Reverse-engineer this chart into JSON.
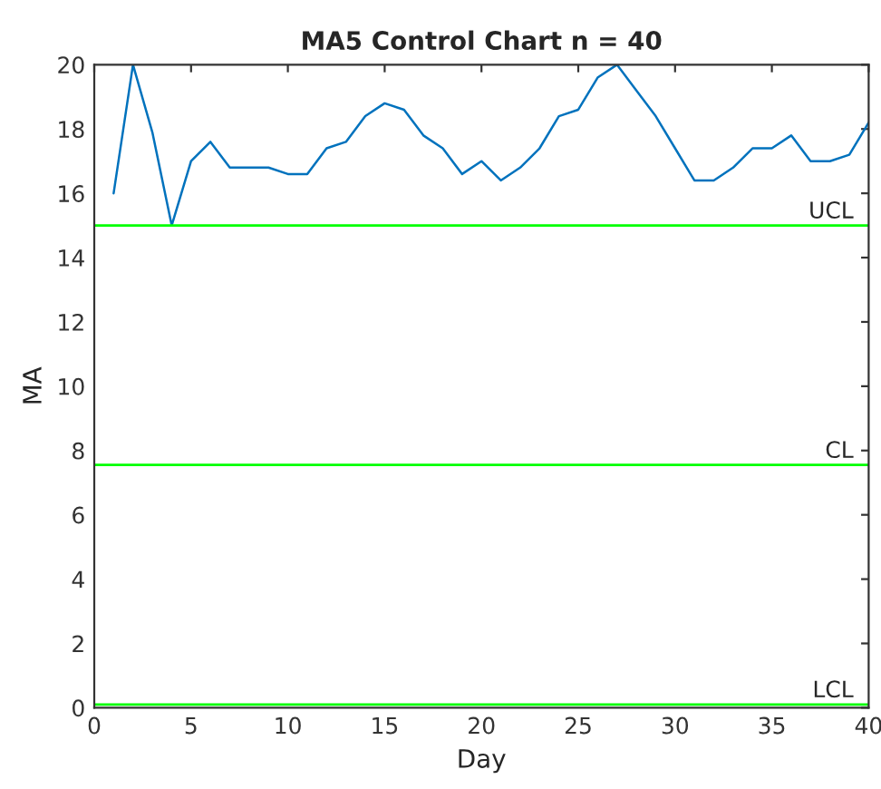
{
  "chart_data": {
    "type": "line",
    "title": "MA5 Control Chart n = 40",
    "xlabel": "Day",
    "ylabel": "MA",
    "x": [
      1,
      2,
      3,
      4,
      5,
      6,
      7,
      8,
      9,
      10,
      11,
      12,
      13,
      14,
      15,
      16,
      17,
      18,
      19,
      20,
      21,
      22,
      23,
      24,
      25,
      26,
      27,
      28,
      29,
      30,
      31,
      32,
      33,
      34,
      35,
      36,
      37,
      38,
      39,
      40
    ],
    "series": [
      {
        "color": "#0072bd",
        "values": [
          16.0,
          20.0,
          17.9,
          15.0,
          17.0,
          17.6,
          16.8,
          16.8,
          16.8,
          16.6,
          16.6,
          17.4,
          17.6,
          18.4,
          18.8,
          18.6,
          17.8,
          17.4,
          16.6,
          17.0,
          16.4,
          16.8,
          17.4,
          18.4,
          18.6,
          19.6,
          20.0,
          19.2,
          18.4,
          17.4,
          16.4,
          16.4,
          16.8,
          17.4,
          17.4,
          17.8,
          17.0,
          17.0,
          17.2,
          18.2
        ]
      }
    ],
    "xlim": [
      0,
      40
    ],
    "xticks": [
      0,
      5,
      10,
      15,
      20,
      25,
      30,
      35,
      40
    ],
    "ylim": [
      0,
      20
    ],
    "yticks": [
      0,
      2,
      4,
      6,
      8,
      10,
      12,
      14,
      16,
      18,
      20
    ],
    "ref_lines": [
      {
        "axis": "y",
        "value": 15,
        "label": "UCL",
        "color": "#00ff00"
      },
      {
        "axis": "y",
        "value": 7.55,
        "label": "CL",
        "color": "#00ff00"
      },
      {
        "axis": "y",
        "value": 0.1,
        "label": "LCL",
        "color": "#00ff00"
      }
    ],
    "grid": false,
    "marker": "none",
    "line_style": "solid"
  }
}
